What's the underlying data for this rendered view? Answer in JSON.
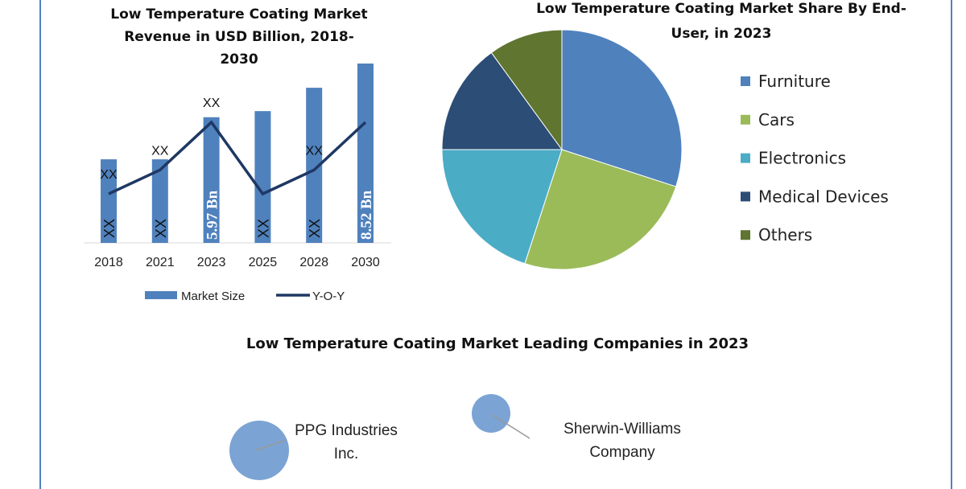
{
  "chart_data": [
    {
      "type": "bar",
      "title": [
        "Low Temperature Coating Market",
        "Revenue in USD Billion, 2018-",
        "2030"
      ],
      "categories": [
        "2018",
        "2021",
        "2023",
        "2025",
        "2028",
        "2030"
      ],
      "series": [
        {
          "name": "Market Size",
          "values": [
            3.97,
            3.97,
            5.97,
            6.26,
            7.37,
            8.52
          ],
          "bar_labels": [
            "XX",
            "XX",
            "5.97 Bn",
            "XX",
            "XX",
            "8.52 Bn"
          ],
          "color": "#4f81bd"
        },
        {
          "name": "Y-O-Y",
          "type": "line",
          "values": [
            1,
            2,
            4,
            1,
            2,
            4
          ],
          "point_labels": [
            "XX",
            "XX",
            "XX",
            "",
            "XX",
            ""
          ],
          "color": "#1f3864"
        }
      ],
      "ylim": [
        0,
        8.52
      ],
      "grid": false,
      "legend": "bottom"
    },
    {
      "type": "pie",
      "title": [
        "Low Temperature Coating Market Share By End-",
        "User, in 2023"
      ],
      "categories": [
        "Furniture",
        "Cars",
        "Electronics",
        "Medical Devices",
        "Others"
      ],
      "values": [
        30,
        25,
        20,
        15,
        10
      ],
      "colors": [
        "#4f81bd",
        "#9bbb59",
        "#4bacc6",
        "#2c4d75",
        "#5f7530"
      ],
      "legend": "right"
    },
    {
      "type": "bubble",
      "title": "Low Temperature Coating Market Leading Companies in 2023",
      "categories": [
        "PPG Industries Inc.",
        "Sherwin-Williams Company"
      ],
      "label_lines": [
        [
          "PPG Industries",
          "Inc."
        ],
        [
          "Sherwin-Williams",
          "Company"
        ]
      ],
      "sizes": [
        37,
        24
      ],
      "color": "#7ba3d4"
    }
  ]
}
